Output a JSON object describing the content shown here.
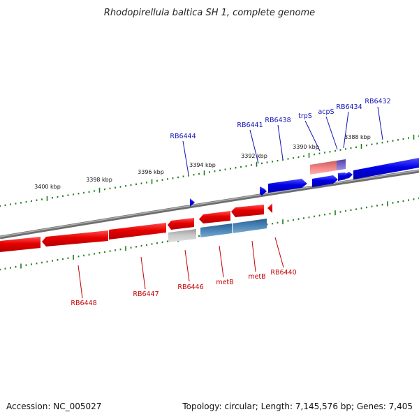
{
  "title": "Rhodopirellula baltica SH 1, complete genome",
  "footer": {
    "accession": "Accession: NC_005027",
    "summary": "Topology: circular; Length: 7,145,576 bp; Genes: 7,405"
  },
  "colors": {
    "forward_gene": "#1414e6",
    "reverse_gene": "#e61414",
    "forward_label": "#1414b4",
    "reverse_label": "#c40000",
    "ticks": "#1e7a1e",
    "backbone": "#8c8c8c",
    "gray_feature": "#b4b4b4",
    "steelblue_feature": "#4682b4",
    "pink_feature": "#f08080",
    "purple_feature": "#7b68c8"
  },
  "tick_labels": [
    "3400 kbp",
    "3398 kbp",
    "3396 kbp",
    "3394 kbp",
    "3392 kbp",
    "3390 kbp",
    "3388 kbp"
  ],
  "forward_labels": [
    "RB6444",
    "RB6441",
    "RB6438",
    "trpS",
    "acpS",
    "RB6434",
    "RB6432"
  ],
  "reverse_labels": [
    "RB6448",
    "RB6447",
    "RB6446",
    "metB",
    "metB",
    "RB6440"
  ]
}
